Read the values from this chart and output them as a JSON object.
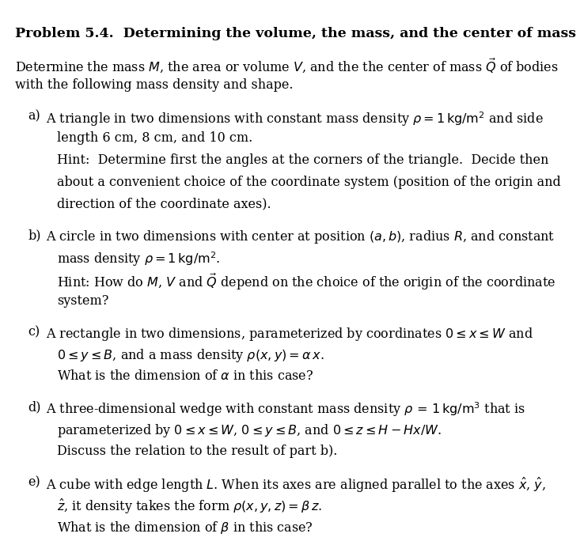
{
  "title": "Problem 5.4.  Determining the volume, the mass, and the center of mass",
  "background_color": "#ffffff",
  "text_color": "#000000",
  "font_size": 11.5,
  "intro": "Determine the mass $M$, the area or volume $V$, and the the center of mass $\\vec{Q}$ of bodies\nwith the following mass density and shape.",
  "items": [
    {
      "label": "a)",
      "lines": [
        "A triangle in two dimensions with constant mass density $\\rho = 1\\,\\mathrm{kg/m^2}$ and side",
        "length 6 cm, 8 cm, and 10 cm.",
        "Hint:  Determine first the angles at the corners of the triangle.  Decide then",
        "about a convenient choice of the coordinate system (position of the origin and",
        "direction of the coordinate axes)."
      ]
    },
    {
      "label": "b)",
      "lines": [
        "A circle in two dimensions with center at position $(a, b)$, radius $R$, and constant",
        "mass density $\\rho = 1\\,\\mathrm{kg/m^2}$.",
        "Hint: How do $M$, $V$ and $\\vec{Q}$ depend on the choice of the origin of the coordinate",
        "system?"
      ]
    },
    {
      "label": "c)",
      "lines": [
        "A rectangle in two dimensions, parameterized by coordinates $0 \\leq x \\leq W$ and",
        "$0 \\leq y \\leq B$, and a mass density $\\rho(x, y) = \\alpha\\, x$.",
        "What is the dimension of $\\alpha$ in this case?"
      ]
    },
    {
      "label": "d)",
      "lines": [
        "A three-dimensional wedge with constant mass density $\\rho\\, =\\, 1\\,\\mathrm{kg/m^3}$ that is",
        "parameterized by $0 \\leq x \\leq W$, $0 \\leq y \\leq B$, and $0 \\leq z \\leq H - Hx/W$.",
        "Discuss the relation to the result of part b)."
      ]
    },
    {
      "label": "e)",
      "lines": [
        "A cube with edge length $L$. When its axes are aligned parallel to the axes $\\hat{x}$, $\\hat{y}$,",
        "$\\hat{z}$, it density takes the form $\\rho(x, y, z) = \\beta\\, z$.",
        "What is the dimension of $\\beta$ in this case?"
      ]
    }
  ]
}
